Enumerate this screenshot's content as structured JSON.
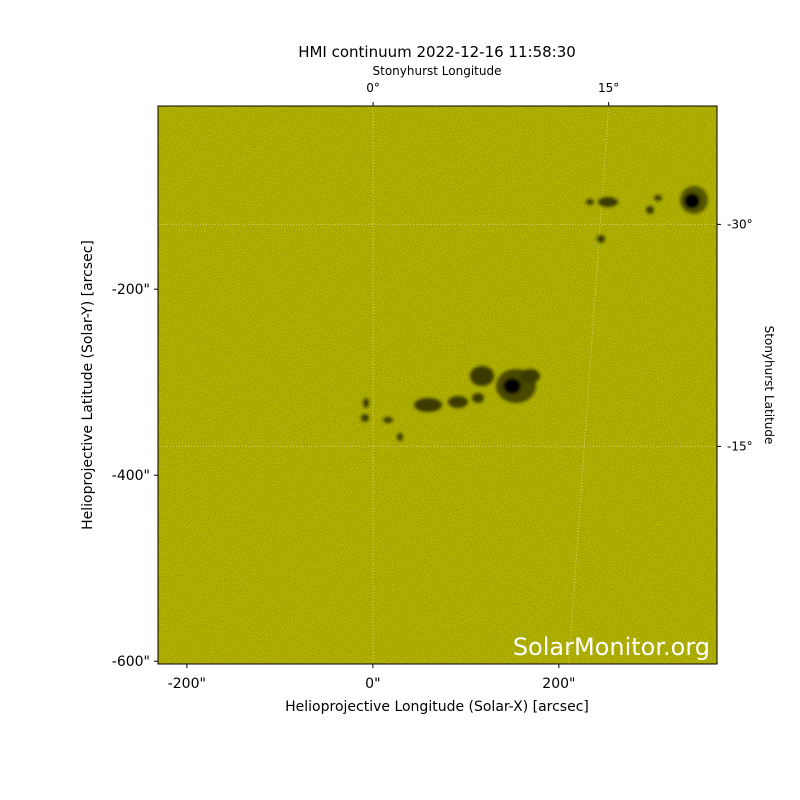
{
  "chart_data": {
    "type": "image",
    "title": "HMI continuum 2022-12-16 11:58:30",
    "xlabel": "Helioprojective Longitude (Solar-X) [arcsec]",
    "ylabel": "Helioprojective Latitude (Solar-Y) [arcsec]",
    "x2label": "Stonyhurst Longitude",
    "y2label": "Stonyhurst Latitude",
    "watermark": "SolarMonitor.org",
    "color": "#d0d000",
    "xlim": [
      -231,
      370
    ],
    "ylim": [
      -603,
      -3
    ],
    "xticks": [
      {
        "value": -200,
        "label": "-200\""
      },
      {
        "value": 0,
        "label": "0\""
      },
      {
        "value": 200,
        "label": "200\""
      }
    ],
    "yticks": [
      {
        "value": -200,
        "label": "-200\""
      },
      {
        "value": -400,
        "label": "-400\""
      },
      {
        "value": -600,
        "label": "-600\""
      }
    ],
    "x2lim": [
      -13.7,
      21.9
    ],
    "y2lim": [
      -0.3,
      -38
    ],
    "x2ticks": [
      {
        "value": 0,
        "label": "0°"
      },
      {
        "value": 15,
        "label": "15°"
      }
    ],
    "y2ticks": [
      {
        "value": -15,
        "label": "-15°"
      },
      {
        "value": -30,
        "label": "-30°"
      }
    ],
    "grid": true
  }
}
